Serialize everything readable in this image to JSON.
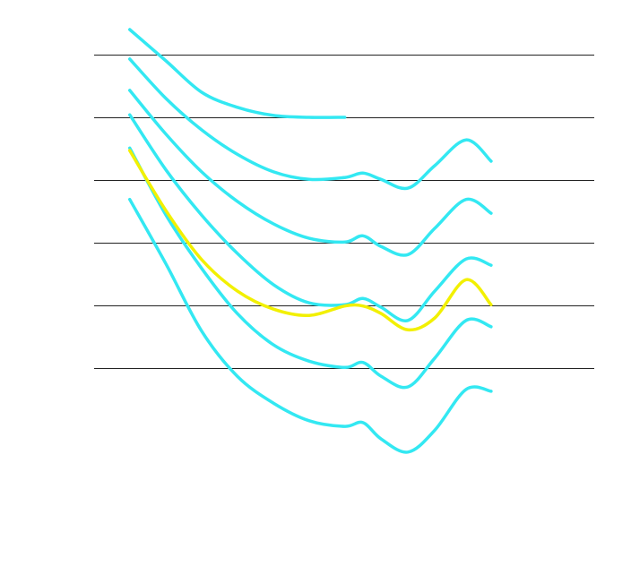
{
  "chart_data": {
    "type": "line",
    "x": [
      0.57,
      1.15,
      1.72,
      2.29,
      2.87,
      3.44,
      4.01,
      4.3,
      4.59,
      5.02,
      5.45,
      5.95,
      6.35
    ],
    "xlim": [
      0,
      8
    ],
    "ylim": [
      -1.5,
      5.5
    ],
    "yticks": [
      0,
      1,
      2,
      3,
      4,
      5
    ],
    "grid": true,
    "series": [
      {
        "color": "#33e8f2",
        "values": [
          5.4,
          4.9,
          4.4,
          4.16,
          4.03,
          4.0,
          4.0,
          null,
          null,
          null,
          null,
          null,
          null
        ]
      },
      {
        "color": "#33e8f2",
        "values": [
          4.93,
          4.3,
          3.8,
          3.41,
          3.13,
          3.01,
          3.04,
          3.11,
          3.01,
          2.87,
          3.23,
          3.64,
          3.3
        ]
      },
      {
        "color": "#33e8f2",
        "values": [
          4.43,
          3.73,
          3.13,
          2.66,
          2.3,
          2.07,
          2.01,
          2.11,
          1.94,
          1.81,
          2.23,
          2.69,
          2.47
        ]
      },
      {
        "color": "#33e8f2",
        "values": [
          4.04,
          3.16,
          2.44,
          1.83,
          1.33,
          1.04,
          1.01,
          1.11,
          0.97,
          0.76,
          1.23,
          1.74,
          1.64
        ]
      },
      {
        "color": "#33e8f2",
        "values": [
          3.51,
          2.44,
          1.59,
          0.87,
          0.37,
          0.11,
          0.01,
          0.09,
          -0.13,
          -0.3,
          0.16,
          0.76,
          0.66
        ]
      },
      {
        "color": "#33e8f2",
        "values": [
          2.69,
          1.66,
          0.59,
          -0.13,
          -0.56,
          -0.84,
          -0.93,
          -0.87,
          -1.13,
          -1.34,
          -0.99,
          -0.34,
          -0.37
        ]
      },
      {
        "color": "#f2f000",
        "values": [
          3.47,
          2.51,
          1.73,
          1.23,
          0.94,
          0.84,
          0.99,
          0.99,
          0.87,
          0.61,
          0.8,
          1.41,
          1.01
        ]
      }
    ]
  }
}
